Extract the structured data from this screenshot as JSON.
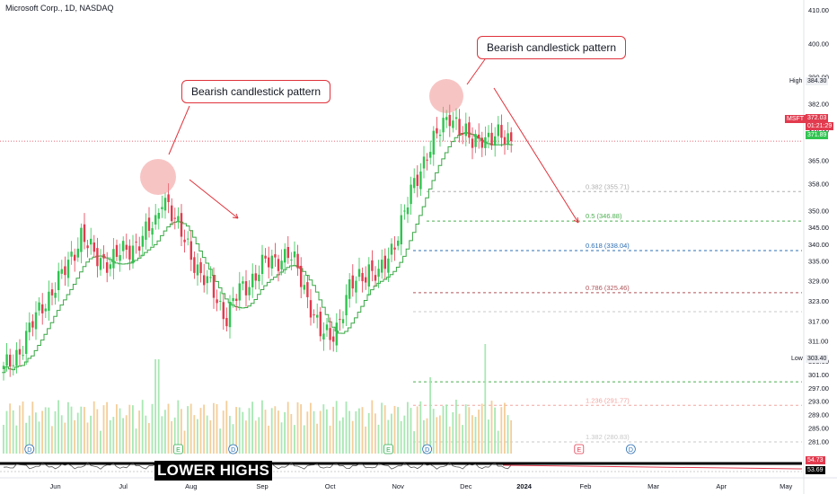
{
  "header": {
    "title": "Microsoft Corp., 1D, NASDAQ"
  },
  "annotations": {
    "callout_left": "Bearish candlestick pattern",
    "callout_right": "Bearish candlestick pattern",
    "lower_highs": "LOWER HIGHS"
  },
  "price_axis": {
    "high_label": "High",
    "high_value": "384.30",
    "low_label": "Low",
    "low_value": "303.40",
    "ticker_label": "MSFT",
    "last_price": "372.03",
    "countdown": "01:21:29",
    "second_price": "371.89",
    "indicator_value": "53.69",
    "indicator_value2": "54.73"
  },
  "colors": {
    "up": "#2fc44f",
    "down": "#e23a4e",
    "ma_line": "#39a845",
    "callout_border": "#e0323b",
    "highlight": "#f08a8a",
    "fib_382": "#b0b0b0",
    "fib_5": "#4caf50",
    "fib_618": "#2d6fb4",
    "fib_786": "#b0545a",
    "fib_1236": "#f2a5a0",
    "fib_1382": "#b0b0b0"
  },
  "chart_data": {
    "type": "candlestick",
    "ylim": [
      276,
      413
    ],
    "y_ticks": [
      410.0,
      400.0,
      390.0,
      382.0,
      374.0,
      365.0,
      358.0,
      350.0,
      345.0,
      340.0,
      335.0,
      329.0,
      323.0,
      317.0,
      311.0,
      305.0,
      301.0,
      297.0,
      293.0,
      289.0,
      285.0,
      281.0
    ],
    "x_labels": [
      "Jun",
      "Jul",
      "Aug",
      "Sep",
      "Oct",
      "Nov",
      "Dec",
      "2024",
      "Feb",
      "Mar",
      "Apr",
      "May"
    ],
    "x_label_index": [
      16,
      37,
      58,
      80,
      101,
      122,
      143,
      161,
      180,
      201,
      222,
      242
    ],
    "fib_levels": [
      {
        "label": "0.382 (355.71)",
        "value": 355.71,
        "color": "#b0b0b0"
      },
      {
        "label": "0.5 (346.88)",
        "value": 346.88,
        "color": "#4caf50"
      },
      {
        "label": "0.618 (338.04)",
        "value": 338.04,
        "color": "#2d6fb4"
      },
      {
        "label": "0.786 (325.46)",
        "value": 325.46,
        "color": "#b0545a"
      },
      {
        "label": "",
        "value": 319.8,
        "color": "#c8c8c8"
      },
      {
        "label": "",
        "value": 298.8,
        "color": "#4caf50"
      },
      {
        "label": "1.236 (291.77)",
        "value": 291.77,
        "color": "#f2a5a0"
      },
      {
        "label": "1.382 (280.83)",
        "value": 280.83,
        "color": "#c8c8c8"
      }
    ],
    "event_markers": [
      "D",
      "E",
      "D",
      "E",
      "D",
      "E",
      "D"
    ],
    "event_marker_index": [
      8,
      54,
      71,
      119,
      131,
      178,
      194
    ],
    "anchor_closes": [
      [
        0,
        302
      ],
      [
        6,
        310
      ],
      [
        12,
        322
      ],
      [
        18,
        330
      ],
      [
        24,
        343
      ],
      [
        28,
        336
      ],
      [
        33,
        335
      ],
      [
        38,
        338
      ],
      [
        43,
        342
      ],
      [
        47,
        346
      ],
      [
        49,
        355
      ],
      [
        51,
        352
      ],
      [
        53,
        346
      ],
      [
        57,
        340
      ],
      [
        61,
        330
      ],
      [
        65,
        326
      ],
      [
        69,
        318
      ],
      [
        73,
        326
      ],
      [
        77,
        330
      ],
      [
        81,
        334
      ],
      [
        85,
        336
      ],
      [
        88,
        337
      ],
      [
        91,
        332
      ],
      [
        95,
        322
      ],
      [
        98,
        313
      ],
      [
        101,
        312
      ],
      [
        104,
        318
      ],
      [
        107,
        326
      ],
      [
        110,
        330
      ],
      [
        113,
        333
      ],
      [
        116,
        330
      ],
      [
        119,
        336
      ],
      [
        122,
        344
      ],
      [
        125,
        352
      ],
      [
        128,
        360
      ],
      [
        131,
        368
      ],
      [
        134,
        372
      ],
      [
        136,
        375
      ],
      [
        138,
        379
      ],
      [
        140,
        377
      ],
      [
        142,
        373
      ],
      [
        145,
        370
      ],
      [
        148,
        373
      ],
      [
        151,
        371
      ],
      [
        154,
        372
      ],
      [
        157,
        372
      ]
    ],
    "series": [
      {
        "name": "MSFT"
      }
    ]
  }
}
